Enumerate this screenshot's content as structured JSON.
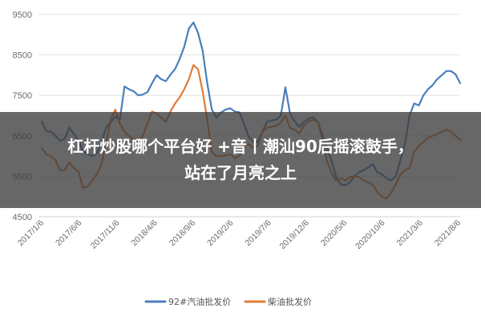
{
  "banner": {
    "line1": "杠杆炒股哪个平台好 +音丨潮汕90后摇滚鼓手，",
    "line2": "站在了月亮之上"
  },
  "chart_data": {
    "type": "line",
    "ylim": [
      4500,
      9500
    ],
    "y_ticks": [
      4500,
      5500,
      6500,
      7500,
      8500,
      9500
    ],
    "y_tick_labels": [
      "4500",
      "5500",
      "6500",
      "7500",
      "8500",
      "9500"
    ],
    "x_tick_labels": [
      "2017/1/6",
      "2017/6/6",
      "2017/11/6",
      "2018/4/6",
      "2018/9/6",
      "2019/2/6",
      "2019/7/6",
      "2019/12/6",
      "2020/5/6",
      "2020/10/6",
      "2021/3/6",
      "2021/8/6"
    ],
    "grid": "horizontal",
    "legend_position": "bottom",
    "series": [
      {
        "name": "92#汽油批发价",
        "color": "#4a7ebb",
        "values": [
          6850,
          6620,
          6600,
          6500,
          6380,
          6420,
          6700,
          6550,
          6380,
          6120,
          6050,
          6000,
          6070,
          6350,
          6700,
          6830,
          6970,
          6900,
          7720,
          7650,
          7600,
          7500,
          7520,
          7580,
          7800,
          8000,
          7900,
          7850,
          8010,
          8150,
          8400,
          8700,
          9150,
          9300,
          9050,
          8600,
          7800,
          7150,
          6950,
          7080,
          7150,
          7180,
          7100,
          7080,
          6800,
          6480,
          6350,
          6350,
          6600,
          6850,
          6880,
          6900,
          7000,
          7700,
          7050,
          6860,
          6720,
          6840,
          6920,
          6960,
          6850,
          6550,
          6200,
          5900,
          5500,
          5300,
          5280,
          5350,
          5500,
          5600,
          5650,
          5720,
          5800,
          5600,
          5550,
          5450,
          5400,
          5500,
          5900,
          6300,
          7000,
          7300,
          7250,
          7500,
          7650,
          7750,
          7900,
          8000,
          8100,
          8100,
          8020,
          7800
        ]
      },
      {
        "name": "柴油批发价",
        "color": "#e07b39",
        "values": [
          6200,
          6050,
          6000,
          5900,
          5650,
          5650,
          5850,
          5700,
          5620,
          5220,
          5250,
          5400,
          5550,
          5800,
          6300,
          6900,
          7150,
          6800,
          6600,
          6500,
          6400,
          6350,
          6500,
          6800,
          7100,
          7050,
          6950,
          6850,
          7100,
          7300,
          7450,
          7650,
          7900,
          8250,
          8150,
          7600,
          6900,
          6100,
          6000,
          6000,
          6020,
          6050,
          5950,
          6000,
          6250,
          6300,
          6200,
          6250,
          6600,
          6700,
          6720,
          6750,
          6830,
          7000,
          6700,
          6650,
          6550,
          6750,
          6850,
          6900,
          6850,
          6450,
          5900,
          5600,
          5400,
          5450,
          5400,
          5480,
          5500,
          5480,
          5400,
          5350,
          5300,
          5100,
          5000,
          4950,
          5100,
          5300,
          5550,
          5650,
          5700,
          6100,
          6250,
          6350,
          6450,
          6500,
          6550,
          6600,
          6650,
          6600,
          6500,
          6400
        ]
      }
    ]
  }
}
